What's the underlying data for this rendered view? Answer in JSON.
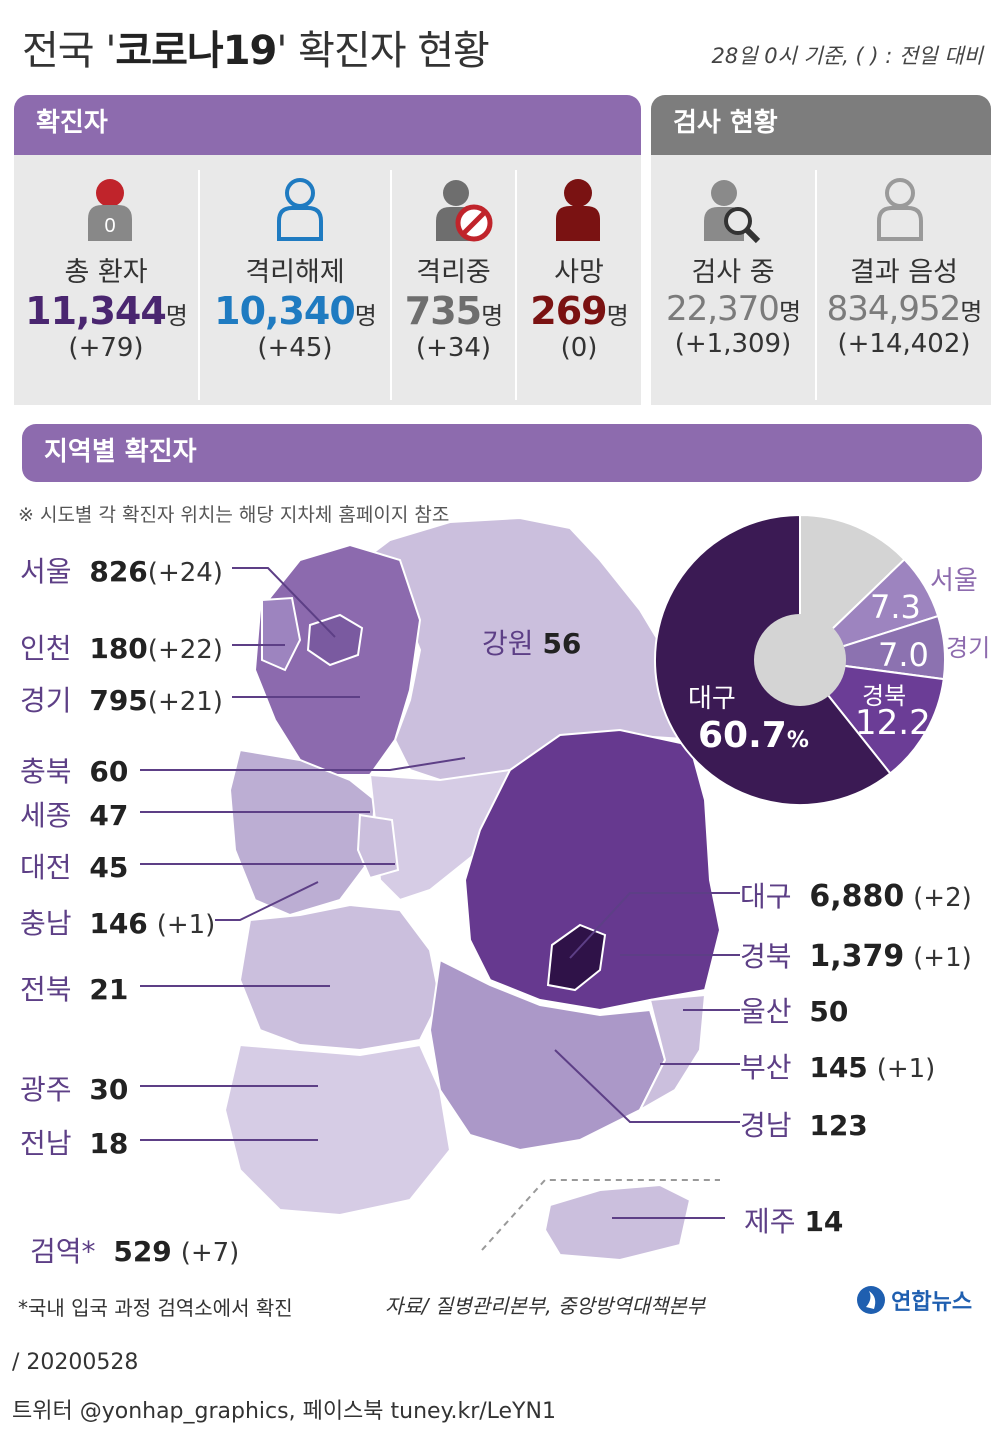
{
  "header": {
    "title_pre": "전국 '",
    "title_bold": "코로나19",
    "title_post": "' 확진자 현황",
    "basis": "28일 0시 기준, ( ) : 전일 대비"
  },
  "confirmed": {
    "band": "확진자",
    "stats": [
      {
        "label": "총 환자",
        "value": "11,344",
        "unit": "명",
        "change": "(+79)",
        "color": "#4a2670",
        "icon": "person-red-head-icon",
        "badge": "0"
      },
      {
        "label": "격리해제",
        "value": "10,340",
        "unit": "명",
        "change": "(+45)",
        "color": "#1f7bc1",
        "icon": "person-outline-blue-icon"
      },
      {
        "label": "격리중",
        "value": "735",
        "unit": "명",
        "change": "(+34)",
        "color": "#6e6e6e",
        "icon": "person-no-entry-icon"
      },
      {
        "label": "사망",
        "value": "269",
        "unit": "명",
        "change": "(0)",
        "color": "#7a1212",
        "icon": "person-darkred-icon"
      }
    ]
  },
  "testing": {
    "band": "검사 현황",
    "stats": [
      {
        "label": "검사 중",
        "value": "22,370",
        "unit": "명",
        "change": "(+1,309)",
        "color": "#7b7b7b",
        "icon": "person-magnifier-icon"
      },
      {
        "label": "결과 음성",
        "value": "834,952",
        "unit": "명",
        "change": "(+14,402)",
        "color": "#7b7b7b",
        "icon": "person-outline-gray-icon"
      }
    ]
  },
  "regional": {
    "band": "지역별 확진자",
    "note": "※ 시도별 각 확진자 위치는 해당 지차체 홈페이지 참조",
    "quarantine_note": "*국내 입국 과정 검역소에서 확진",
    "source": "자료/ 질병관리본부, 중앙방역대책본부",
    "logo": "연합뉴스"
  },
  "chart_data": [
    {
      "type": "table",
      "title": "지역별 확진자",
      "columns": [
        "region",
        "count",
        "change"
      ],
      "rows": [
        [
          "서울",
          826,
          "+24"
        ],
        [
          "인천",
          180,
          "+22"
        ],
        [
          "경기",
          795,
          "+21"
        ],
        [
          "강원",
          56,
          ""
        ],
        [
          "충북",
          60,
          ""
        ],
        [
          "세종",
          47,
          ""
        ],
        [
          "대전",
          45,
          ""
        ],
        [
          "충남",
          146,
          "+1"
        ],
        [
          "전북",
          21,
          ""
        ],
        [
          "광주",
          30,
          ""
        ],
        [
          "전남",
          18,
          ""
        ],
        [
          "검역*",
          529,
          "+7"
        ],
        [
          "대구",
          6880,
          "+2"
        ],
        [
          "경북",
          1379,
          "+1"
        ],
        [
          "울산",
          50,
          ""
        ],
        [
          "부산",
          145,
          "+1"
        ],
        [
          "경남",
          123,
          ""
        ],
        [
          "제주",
          14,
          ""
        ]
      ],
      "labels": {
        "서울": {
          "name": "서울",
          "count": "826",
          "change": "(+24)"
        },
        "인천": {
          "name": "인천",
          "count": "180",
          "change": "(+22)"
        },
        "경기": {
          "name": "경기",
          "count": "795",
          "change": "(+21)"
        },
        "강원": {
          "name": "강원",
          "count": "56",
          "change": ""
        },
        "충북": {
          "name": "충북",
          "count": "60",
          "change": ""
        },
        "세종": {
          "name": "세종",
          "count": "47",
          "change": ""
        },
        "대전": {
          "name": "대전",
          "count": "45",
          "change": ""
        },
        "충남": {
          "name": "충남",
          "count": "146",
          "change": "(+1)"
        },
        "전북": {
          "name": "전북",
          "count": "21",
          "change": ""
        },
        "광주": {
          "name": "광주",
          "count": "30",
          "change": ""
        },
        "전남": {
          "name": "전남",
          "count": "18",
          "change": ""
        },
        "검역": {
          "name": "검역*",
          "count": "529",
          "change": "(+7)"
        },
        "대구": {
          "name": "대구",
          "count": "6,880",
          "change": "(+2)"
        },
        "경북": {
          "name": "경북",
          "count": "1,379",
          "change": "(+1)"
        },
        "울산": {
          "name": "울산",
          "count": "50",
          "change": ""
        },
        "부산": {
          "name": "부산",
          "count": "145",
          "change": "(+1)"
        },
        "경남": {
          "name": "경남",
          "count": "123",
          "change": ""
        },
        "제주": {
          "name": "제주",
          "count": "14",
          "change": ""
        }
      }
    },
    {
      "type": "pie",
      "unit": "%",
      "slices": [
        {
          "label": "대구",
          "value": 60.7,
          "text": "60.7",
          "color": "#3b1a54"
        },
        {
          "label": "경북",
          "value": 12.2,
          "text": "12.2",
          "color": "#6b3d96"
        },
        {
          "label": "경기",
          "value": 7.0,
          "text": "7.0",
          "color": "#8c72b0"
        },
        {
          "label": "서울",
          "value": 7.3,
          "text": "7.3",
          "color": "#9d84bf"
        },
        {
          "label": "",
          "value": 12.8,
          "text": "",
          "color": "#d4d4d4"
        }
      ]
    }
  ],
  "footer": {
    "date": "/ 20200528",
    "social": "트위터 @yonhap_graphics, 페이스북 tuney.kr/LeYN1"
  },
  "colors": {
    "band": "#8d6bae",
    "band_gray": "#7d7d7d",
    "region_name": "#5d3f86",
    "daegu": "#3b1a54",
    "gyeongbuk": "#6b3d96",
    "seoul_gyeonggi": "#8c6aae",
    "light_region": "#cbbfdd"
  }
}
